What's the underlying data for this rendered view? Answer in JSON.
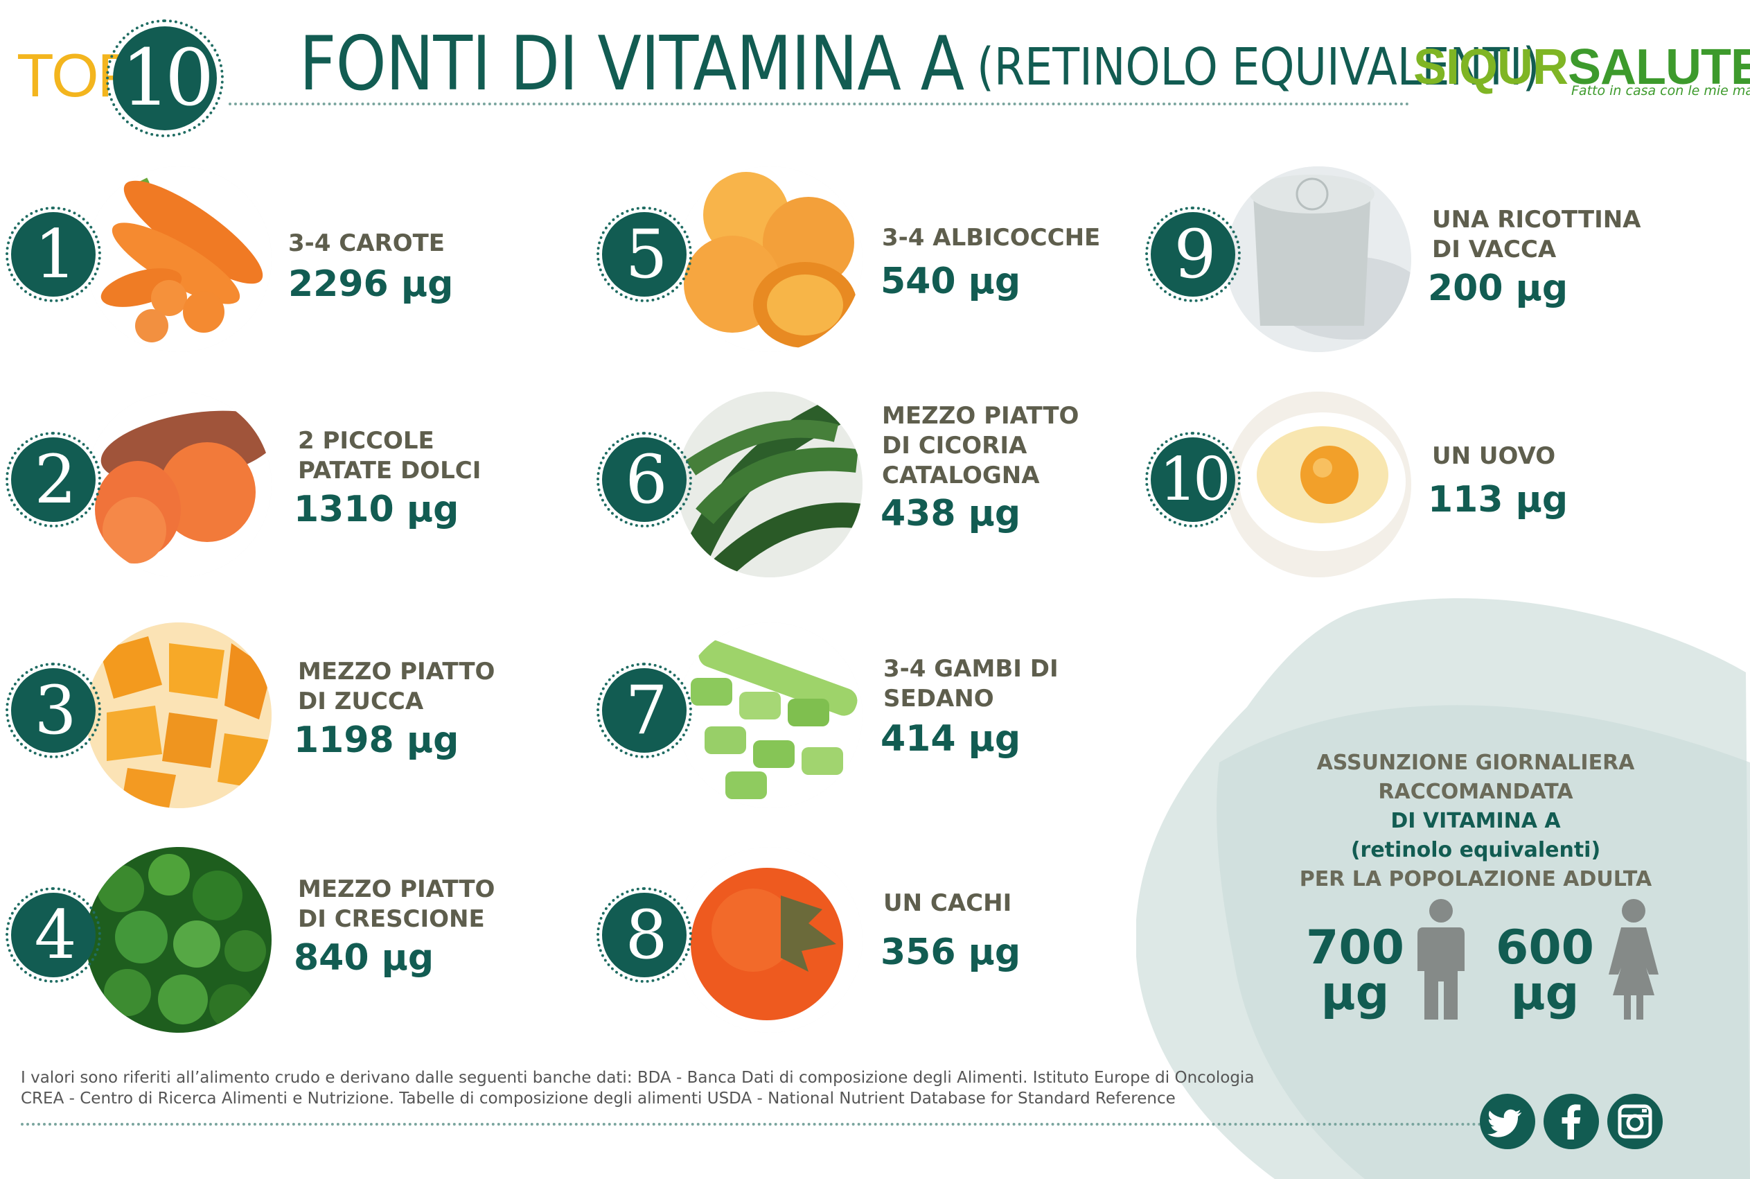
{
  "header": {
    "top": "TOP",
    "top_number": "10",
    "title": "FONTI DI VITAMINA A",
    "subtitle": "(RETINOLO EQUIVALENTI)",
    "logo_part1": "SIQUR",
    "logo_part2": "SALUTE",
    "logo_tagline": "Fatto in casa con le mie mani"
  },
  "items": [
    {
      "rank": "1",
      "label": "3-4 CAROTE",
      "amount": "2296 µg",
      "icon": "carrot-icon"
    },
    {
      "rank": "2",
      "label": "2 PICCOLE\nPATATE DOLCI",
      "amount": "1310 µg",
      "icon": "sweet-potato-icon"
    },
    {
      "rank": "3",
      "label": "MEZZO PIATTO\nDI ZUCCA",
      "amount": "1198 µg",
      "icon": "pumpkin-icon"
    },
    {
      "rank": "4",
      "label": "MEZZO PIATTO\nDI CRESCIONE",
      "amount": "840 µg",
      "icon": "watercress-icon"
    },
    {
      "rank": "5",
      "label": "3-4 ALBICOCCHE",
      "amount": "540 µg",
      "icon": "apricot-icon"
    },
    {
      "rank": "6",
      "label": "MEZZO PIATTO\nDI CICORIA\nCATALOGNA",
      "amount": "438 µg",
      "icon": "chicory-icon"
    },
    {
      "rank": "7",
      "label": "3-4 GAMBI DI\nSEDANO",
      "amount": "414 µg",
      "icon": "celery-icon"
    },
    {
      "rank": "8",
      "label": "UN CACHI",
      "amount": "356 µg",
      "icon": "persimmon-icon"
    },
    {
      "rank": "9",
      "label": "UNA RICOTTINA\nDI VACCA",
      "amount": "200 µg",
      "icon": "ricotta-icon"
    },
    {
      "rank": "10",
      "label": "UN UOVO",
      "amount": "113 µg",
      "icon": "egg-icon"
    }
  ],
  "daily": {
    "line1": "ASSUNZIONE GIORNALIERA",
    "line2": "RACCOMANDATA",
    "line3": "DI VITAMINA A",
    "line4": "(retinolo equivalenti)",
    "line5": "PER LA POPOLAZIONE ADULTA",
    "men_value": "700",
    "men_unit": "µg",
    "women_value": "600",
    "women_unit": "µg"
  },
  "footer": {
    "line1": "I valori sono riferiti all’alimento crudo e derivano dalle seguenti banche dati: BDA - Banca Dati di composizione degli Alimenti. Istituto Europe di Oncologia",
    "line2": "CREA - Centro di Ricerca Alimenti e Nutrizione. Tabelle di composizione degli alimenti USDA - National Nutrient Database for Standard Reference"
  },
  "social": [
    "twitter-icon",
    "facebook-icon",
    "instagram-icon"
  ],
  "colors": {
    "primary": "#125c52",
    "accent": "#f3b51e",
    "label": "#5e5e4d",
    "logo_light": "#7fb524",
    "logo_dark": "#3d9a2c",
    "blob": "#dde8e6"
  }
}
